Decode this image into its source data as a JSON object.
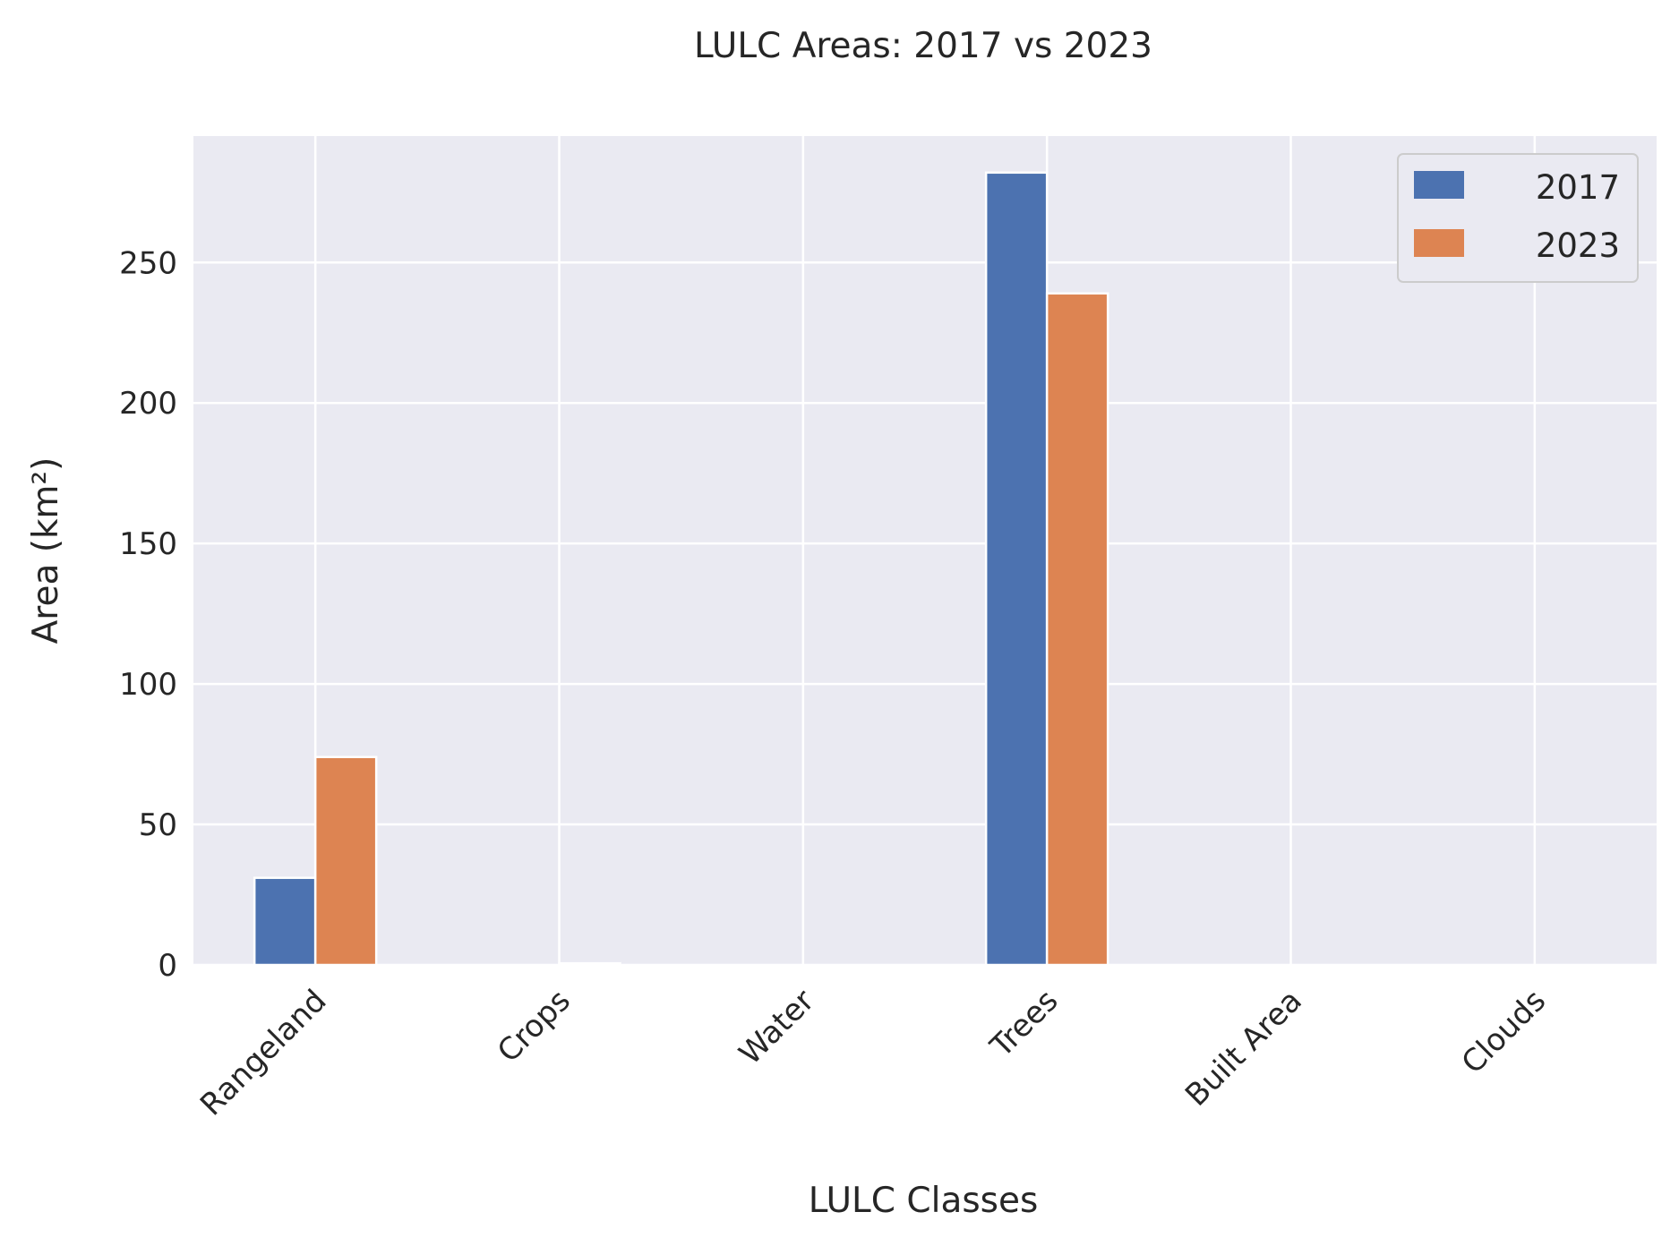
{
  "chart_data": {
    "type": "bar",
    "title": "LULC Areas: 2017 vs 2023",
    "xlabel": "LULC Classes",
    "ylabel": "Area (km²)",
    "categories": [
      "Rangeland",
      "Crops",
      "Water",
      "Trees",
      "Built Area",
      "Clouds"
    ],
    "series": [
      {
        "name": "2017",
        "color": "#4c72b0",
        "values": [
          31,
          0,
          0,
          282,
          0,
          0
        ]
      },
      {
        "name": "2023",
        "color": "#dd8452",
        "values": [
          74,
          0.6,
          0,
          239,
          0,
          0
        ]
      }
    ],
    "ylim": [
      0,
      295
    ],
    "yticks": [
      0,
      50,
      100,
      150,
      200,
      250
    ],
    "grid": true,
    "legend_position": "upper-right",
    "background_color": "#eaeaf2"
  }
}
